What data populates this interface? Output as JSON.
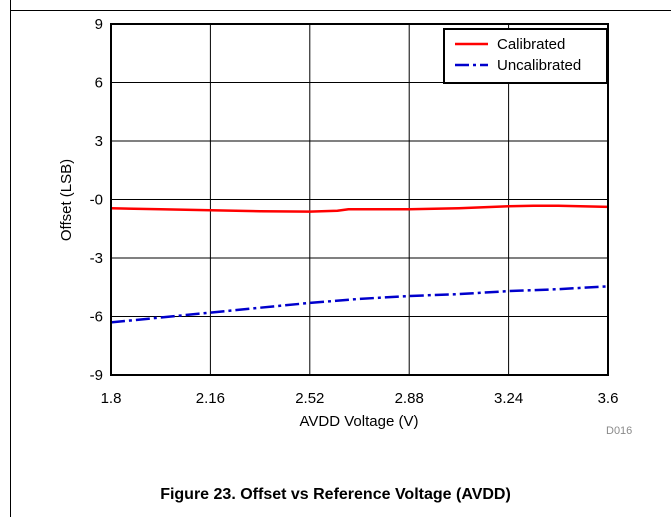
{
  "figure": {
    "caption": "Figure 23. Offset vs Reference Voltage (AVDD)",
    "code": "D016"
  },
  "chart_data": {
    "type": "line",
    "xlabel": "AVDD Voltage (V)",
    "ylabel": "Offset (LSB)",
    "xlim": [
      1.8,
      3.6
    ],
    "ylim": [
      -9,
      9
    ],
    "xticks": [
      1.8,
      2.16,
      2.52,
      2.88,
      3.24,
      3.6
    ],
    "xtick_labels": [
      "1.8",
      "2.16",
      "2.52",
      "2.88",
      "3.24",
      "3.6"
    ],
    "yticks": [
      -9,
      -6,
      -3,
      0,
      3,
      6,
      9
    ],
    "ytick_labels": [
      "-9",
      "-6",
      "-3",
      "-0",
      "3",
      "6",
      "9"
    ],
    "grid": true,
    "legend_position": "top-right",
    "series": [
      {
        "name": "Calibrated",
        "color": "#ff0000",
        "style": "solid",
        "x": [
          1.8,
          1.98,
          2.16,
          2.34,
          2.52,
          2.62,
          2.66,
          2.88,
          3.06,
          3.24,
          3.33,
          3.42,
          3.6
        ],
        "y": [
          -0.45,
          -0.5,
          -0.55,
          -0.6,
          -0.62,
          -0.58,
          -0.5,
          -0.5,
          -0.45,
          -0.35,
          -0.32,
          -0.32,
          -0.38
        ]
      },
      {
        "name": "Uncalibrated",
        "color": "#0000cc",
        "style": "dashdot",
        "x": [
          1.8,
          1.98,
          2.16,
          2.34,
          2.52,
          2.7,
          2.88,
          3.06,
          3.24,
          3.42,
          3.6
        ],
        "y": [
          -6.3,
          -6.05,
          -5.8,
          -5.55,
          -5.3,
          -5.1,
          -4.95,
          -4.85,
          -4.7,
          -4.6,
          -4.45
        ]
      }
    ]
  }
}
